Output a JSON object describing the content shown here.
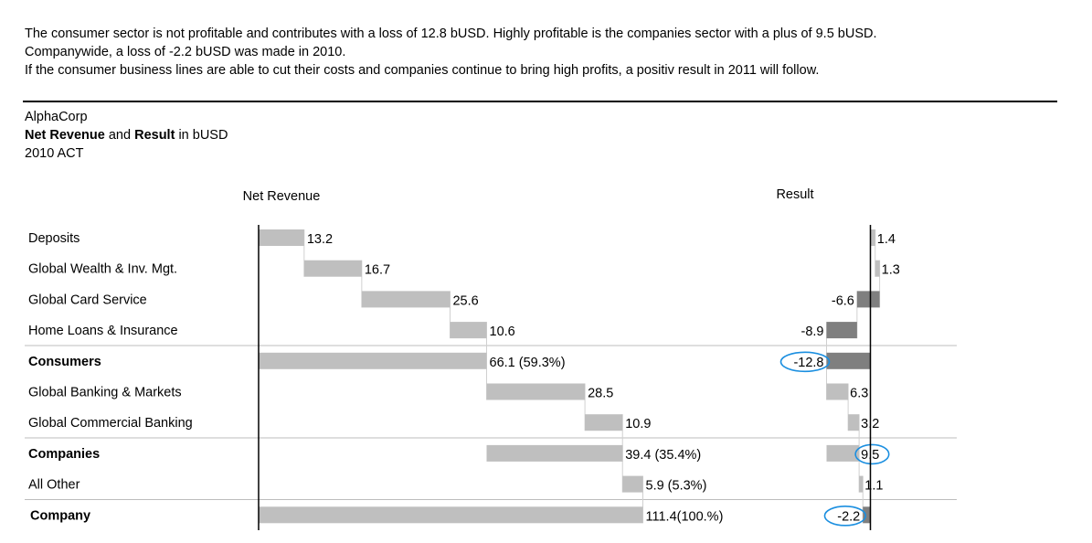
{
  "comment": {
    "line1": "The consumer sector is not profitable and contributes with a loss of 12.8 bUSD. Highly profitable is the companies sector with a plus of 9.5 bUSD.",
    "line2": "Companywide, a loss of -2.2 bUSD was made in 2010.",
    "line3": "If the consumer business lines are able to cut their costs and companies continue to bring high profits, a positiv result in 2011 will follow."
  },
  "header": {
    "company": "AlphaCorp",
    "title_part1": "Net Revenue",
    "title_part2": " and ",
    "title_part3": "Result",
    "title_part4": " in bUSD",
    "period": "2010 ACT"
  },
  "colors": {
    "bar_light": "#bfbfbf",
    "bar_dark": "#7f7f7f",
    "highlight": "#1b8fe0",
    "axis": "#000000",
    "separator": "#bdbdbd"
  },
  "chart_data": [
    {
      "type": "bar",
      "subtype": "waterfall-horizontal",
      "title": "Net Revenue",
      "categories": [
        "Deposits",
        "Global Wealth & Inv. Mgt.",
        "Global Card Service",
        "Home Loans & Insurance",
        "Consumers",
        "Global Banking & Markets",
        "Global Commercial Banking",
        "Companies",
        "All Other",
        "Company"
      ],
      "values": [
        13.2,
        16.7,
        25.6,
        10.6,
        66.1,
        28.5,
        10.9,
        39.4,
        5.9,
        111.4
      ],
      "labels": [
        "13.2",
        "16.7",
        "25.6",
        "10.6",
        "66.1  (59.3%)",
        "28.5",
        "10.9",
        "39.4  (35.4%)",
        "5.9 (5.3%)",
        "111.4(100.%)"
      ],
      "bold": [
        false,
        false,
        false,
        false,
        true,
        false,
        false,
        true,
        false,
        true
      ],
      "is_total": [
        false,
        false,
        false,
        false,
        true,
        false,
        false,
        true,
        false,
        true
      ]
    },
    {
      "type": "bar",
      "subtype": "waterfall-horizontal",
      "title": "Result",
      "categories": [
        "Deposits",
        "Global Wealth & Inv. Mgt.",
        "Global Card Service",
        "Home Loans & Insurance",
        "Consumers",
        "Global Banking & Markets",
        "Global Commercial Banking",
        "Companies",
        "All Other",
        "Company"
      ],
      "values": [
        1.4,
        1.3,
        -6.6,
        -8.9,
        -12.8,
        6.3,
        3.2,
        9.5,
        1.1,
        -2.2
      ],
      "labels": [
        "1.4",
        "1.3",
        "-6.6",
        "-8.9",
        "-12.8",
        "6.3",
        "3.2",
        "9.5",
        "1.1",
        "-2.2"
      ],
      "highlighted": [
        "-12.8",
        "9.5",
        "-2.2"
      ]
    }
  ]
}
